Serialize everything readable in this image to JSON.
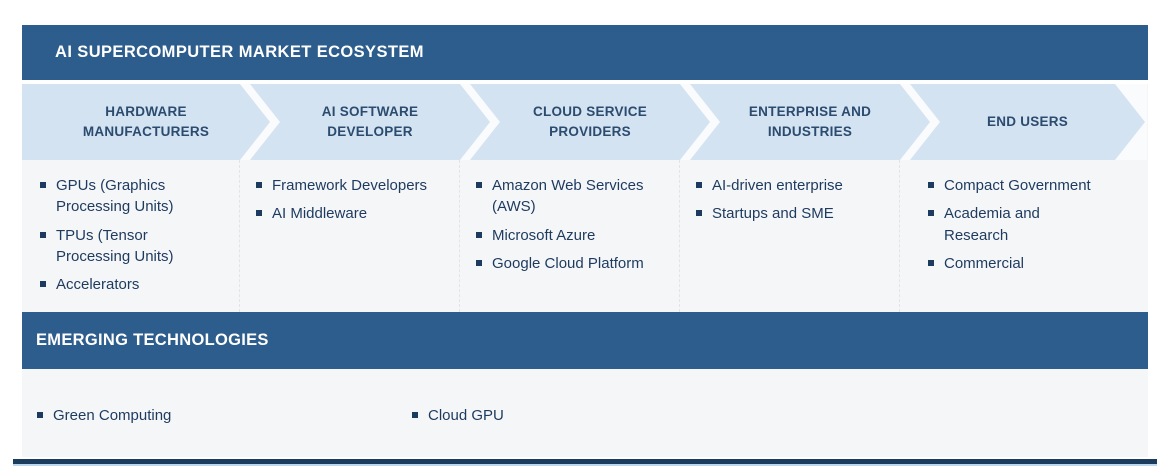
{
  "title_bar": {
    "title": "AI SUPERCOMPUTER MARKET ECOSYSTEM"
  },
  "flow": {
    "stages": [
      {
        "id": "hardware-manufacturers",
        "lines": [
          "HARDWARE",
          "MANUFACTURERS"
        ],
        "items": [
          "GPUs (Graphics Processing Units)",
          "TPUs (Tensor Processing Units)",
          "Accelerators"
        ]
      },
      {
        "id": "ai-software-developer",
        "lines": [
          "AI SOFTWARE",
          "DEVELOPER"
        ],
        "items": [
          "Framework Developers",
          "AI Middleware"
        ]
      },
      {
        "id": "cloud-service-providers",
        "lines": [
          "CLOUD  SERVICE",
          "PROVIDERS"
        ],
        "items": [
          "Amazon Web Services (AWS)",
          "Microsoft Azure",
          "Google Cloud Platform"
        ]
      },
      {
        "id": "enterprise-and-industries",
        "lines": [
          "ENTERPRISE AND",
          "INDUSTRIES"
        ],
        "items": [
          "AI-driven enterprise",
          "Startups and SME"
        ]
      },
      {
        "id": "end-users",
        "lines": [
          "END USERS"
        ],
        "items": [
          "Compact Government",
          "Academia and Research",
          "Commercial"
        ]
      }
    ]
  },
  "emerging": {
    "title": "EMERGING TECHNOLOGIES",
    "items": [
      "Green Computing",
      "Cloud GPU"
    ]
  },
  "colors": {
    "bar_blue": "#2D5D8C",
    "chevron_fill": "#D4E3F1",
    "chevron_text": "#2B4B6F",
    "body_text": "#1D3A5F",
    "panel_gray": "#F5F6F7",
    "footer_navy": "#1C3C5E",
    "footer_underline": "#BDD7EE"
  }
}
